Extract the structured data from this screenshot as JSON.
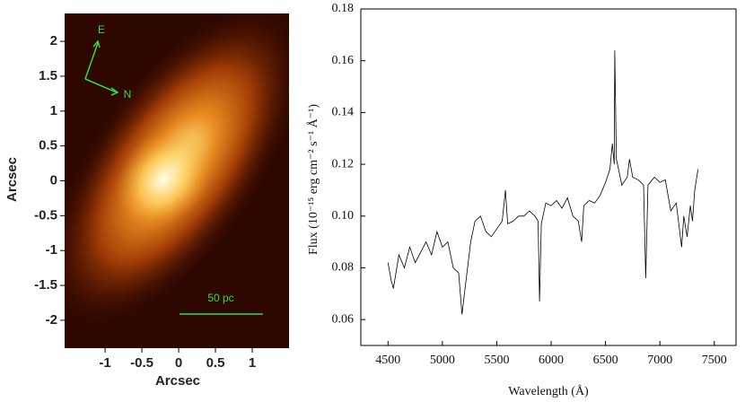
{
  "chart_data": [
    {
      "type": "image",
      "xlabel": "Arcsec",
      "ylabel": "Arcsec",
      "xlim": [
        -1.55,
        1.5
      ],
      "ylim": [
        -2.4,
        2.4
      ],
      "xticks": [
        -1,
        -0.5,
        0,
        0.5,
        1
      ],
      "yticks": [
        2,
        1.5,
        1,
        0.5,
        0,
        -0.5,
        -1,
        -1.5,
        -2
      ],
      "annotations": [
        "E",
        "N",
        "50 pc"
      ]
    },
    {
      "type": "line",
      "xlabel": "Wavelength (Å)",
      "ylabel": "Flux (10⁻¹⁵ erg cm⁻² s⁻¹ Å⁻¹)",
      "color": "#000000",
      "xlim": [
        4250,
        7700
      ],
      "ylim": [
        0.05,
        0.18
      ],
      "xticks": [
        4500,
        5000,
        5500,
        6000,
        6500,
        7000,
        7500
      ],
      "yticks": [
        0.06,
        0.08,
        {
          "value": 0.1,
          "label": "0.10"
        },
        0.12,
        0.14,
        0.16,
        0.18
      ],
      "x": [
        4500,
        4530,
        4550,
        4600,
        4650,
        4700,
        4750,
        4800,
        4850,
        4900,
        4950,
        5000,
        5050,
        5100,
        5150,
        5180,
        5220,
        5260,
        5300,
        5350,
        5400,
        5450,
        5500,
        5550,
        5580,
        5600,
        5650,
        5700,
        5750,
        5800,
        5850,
        5880,
        5893,
        5910,
        5950,
        6000,
        6050,
        6100,
        6150,
        6200,
        6250,
        6280,
        6300,
        6350,
        6400,
        6450,
        6500,
        6540,
        6563,
        6580,
        6585,
        6600,
        6650,
        6700,
        6720,
        6750,
        6800,
        6850,
        6870,
        6890,
        6950,
        7000,
        7050,
        7100,
        7150,
        7200,
        7220,
        7250,
        7280,
        7300,
        7320,
        7350
      ],
      "values": [
        0.082,
        0.075,
        0.072,
        0.085,
        0.08,
        0.088,
        0.082,
        0.086,
        0.09,
        0.085,
        0.094,
        0.088,
        0.09,
        0.08,
        0.078,
        0.062,
        0.076,
        0.09,
        0.098,
        0.1,
        0.094,
        0.092,
        0.095,
        0.098,
        0.11,
        0.097,
        0.098,
        0.1,
        0.1,
        0.102,
        0.1,
        0.098,
        0.067,
        0.097,
        0.105,
        0.104,
        0.106,
        0.103,
        0.107,
        0.1,
        0.098,
        0.09,
        0.104,
        0.106,
        0.105,
        0.108,
        0.113,
        0.118,
        0.128,
        0.12,
        0.164,
        0.122,
        0.112,
        0.115,
        0.122,
        0.115,
        0.114,
        0.112,
        0.076,
        0.112,
        0.115,
        0.113,
        0.114,
        0.102,
        0.105,
        0.088,
        0.1,
        0.092,
        0.104,
        0.098,
        0.11,
        0.118
      ]
    }
  ]
}
